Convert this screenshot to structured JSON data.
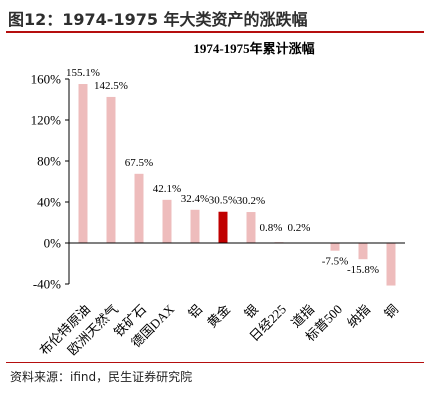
{
  "figure": {
    "title": "图12：1974-1975 年大类资产的涨跌幅",
    "source": "资料来源：ifind，民生证券研究院"
  },
  "colors": {
    "bar": "#eebcbc",
    "highlight_bar": "#c00000",
    "accent_rule": "#b50e0e",
    "axis": "#000000"
  },
  "chart_data": {
    "type": "bar",
    "title": "1974-1975年累计涨幅",
    "categories": [
      "布伦特原油",
      "欧洲天然气",
      "铁矿石",
      "德国DAX",
      "铝",
      "黄金",
      "银",
      "日经225",
      "道指",
      "标普500",
      "纳指",
      "铜"
    ],
    "values": [
      155.1,
      142.5,
      67.5,
      42.1,
      32.4,
      30.5,
      30.2,
      0.8,
      0.2,
      -7.5,
      -15.8,
      -41.5
    ],
    "data_labels": [
      "155.1%",
      "142.5%",
      "67.5%",
      "42.1%",
      "32.4%",
      "30.5%",
      "30.2%",
      "0.8%",
      "0.2%",
      "-7.5%",
      "-15.8%",
      ""
    ],
    "highlight_category": "黄金",
    "ylim": [
      -40,
      160
    ],
    "yticks": [
      -40,
      0,
      40,
      80,
      120,
      160
    ],
    "ytick_labels": [
      "-40%",
      "0%",
      "40%",
      "80%",
      "120%",
      "160%"
    ],
    "xlabel": "",
    "ylabel": "",
    "grid": false,
    "legend": "none"
  }
}
